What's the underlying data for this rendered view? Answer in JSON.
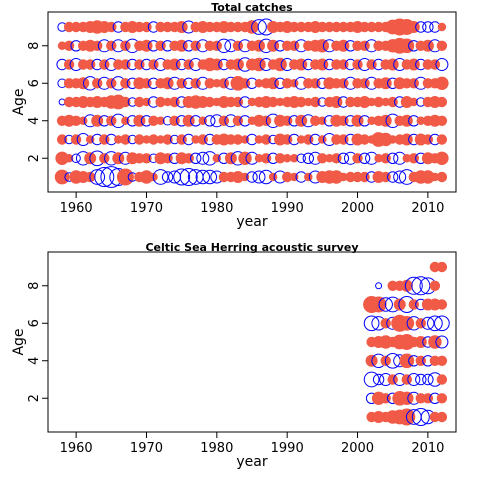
{
  "colors": {
    "positive": "#f05a46",
    "negative": "#0000ff"
  },
  "chart_data": [
    {
      "type": "scatter",
      "subtype": "bubble",
      "title": "Total catches",
      "xlabel": "year",
      "ylabel": "Age",
      "xlim": [
        1956,
        2014
      ],
      "ylim": [
        0.2,
        9.8
      ],
      "xticks": [
        1960,
        1970,
        1980,
        1990,
        2000,
        2010
      ],
      "yticks": [
        2,
        4,
        6,
        8
      ],
      "grid": false,
      "legend": "none",
      "x_years": [
        1958,
        2012
      ],
      "ages": [
        1,
        2,
        3,
        4,
        5,
        6,
        7,
        8,
        9
      ],
      "residuals_by_age": {
        "1": [
          0.6,
          -0.2,
          0.5,
          0.4,
          0.3,
          -0.6,
          -1.0,
          -1.2,
          -0.8,
          0.8,
          -0.2,
          0.3,
          0.5,
          0.2,
          -0.6,
          -0.3,
          -0.4,
          -0.7,
          -0.8,
          -0.6,
          -0.5,
          -0.5,
          -0.4,
          0.3,
          0.3,
          0.4,
          0.2,
          -0.3,
          -0.4,
          -0.5,
          0.2,
          -0.4,
          0.3,
          0.2,
          -0.3,
          0.2,
          -0.4,
          0.4,
          0.5,
          0.5,
          0.2,
          0.3,
          0.3,
          0.3,
          -0.3,
          0.4,
          0.3,
          -0.3,
          -0.4,
          -0.6,
          0.3,
          0.5,
          0.5,
          0.2,
          0.3
        ],
        "2": [
          0.5,
          0.2,
          -0.2,
          -0.5,
          0.4,
          -0.6,
          0.3,
          -0.5,
          0.4,
          -0.4,
          0.4,
          0.3,
          0.3,
          -0.2,
          0.4,
          0.3,
          -0.3,
          0.4,
          0.3,
          -0.3,
          -0.4,
          -0.5,
          0.2,
          -0.3,
          0.4,
          -0.5,
          0.5,
          -0.4,
          0.2,
          0.3,
          -0.3,
          0.3,
          0.2,
          0.2,
          -0.2,
          -0.3,
          -0.4,
          0.3,
          0.2,
          0.3,
          -0.3,
          -0.4,
          0.3,
          -0.3,
          -0.4,
          0.2,
          0.3,
          -0.3,
          -0.4,
          0.2,
          0.3,
          -0.3,
          0.4,
          0.3,
          0.5
        ],
        "3": [
          0.3,
          -0.2,
          0.3,
          -0.4,
          0.2,
          -0.3,
          0.3,
          -0.3,
          0.2,
          0.3,
          -0.2,
          0.3,
          0.2,
          0.3,
          0.2,
          0.3,
          -0.2,
          0.3,
          -0.3,
          0.2,
          0.3,
          -0.3,
          0.3,
          0.4,
          0.3,
          0.3,
          0.2,
          -0.3,
          0.2,
          0.3,
          -0.2,
          0.4,
          0.3,
          -0.3,
          0.2,
          0.3,
          -0.3,
          0.2,
          -0.4,
          0.3,
          0.3,
          -0.3,
          0.4,
          0.3,
          0.2,
          0.6,
          0.5,
          0.2,
          0.3,
          0.4,
          -0.3,
          0.4,
          0.3,
          -0.3,
          0.3
        ],
        "4": [
          0.3,
          0.4,
          0.3,
          0.2,
          -0.4,
          0.4,
          -0.3,
          0.3,
          -0.5,
          0.2,
          -0.3,
          0.4,
          -0.3,
          0.3,
          0.2,
          -0.2,
          0.3,
          -0.3,
          0.4,
          -0.3,
          0.2,
          -0.3,
          -0.4,
          0.3,
          -0.4,
          0.3,
          -0.3,
          0.2,
          0.4,
          0.3,
          -0.5,
          0.4,
          0.3,
          -0.3,
          0.4,
          -0.4,
          0.3,
          0.2,
          -0.3,
          0.4,
          0.3,
          -0.3,
          0.4,
          -0.3,
          0.2,
          0.3,
          0.4,
          -0.5,
          0.3,
          0.4,
          -0.3,
          0.2,
          0.3,
          0.4,
          0.3
        ],
        "5": [
          -0.1,
          0.3,
          0.3,
          0.4,
          0.3,
          0.4,
          0.3,
          0.5,
          0.6,
          0.3,
          -0.2,
          0.3,
          0.2,
          -0.3,
          0.3,
          0.2,
          0.3,
          -0.3,
          0.4,
          0.5,
          0.4,
          0.3,
          0.2,
          0.4,
          0.3,
          0.3,
          -0.3,
          0.2,
          0.3,
          0.4,
          0.3,
          0.2,
          0.3,
          0.4,
          0.3,
          0.2,
          0.3,
          -0.2,
          0.3,
          0.4,
          -0.3,
          0.3,
          0.3,
          0.4,
          0.2,
          0.3,
          0.2,
          0.3,
          -0.3,
          0.4,
          0.2,
          -0.2,
          0.3,
          0.4,
          0.3
        ],
        "6": [
          -0.2,
          0.3,
          0.3,
          0.4,
          -0.5,
          0.3,
          -0.4,
          0.3,
          -0.5,
          0.3,
          -0.3,
          0.4,
          0.3,
          -0.3,
          0.3,
          0.4,
          -0.4,
          0.3,
          -0.3,
          0.3,
          -0.4,
          0.3,
          0.2,
          0.3,
          -0.4,
          0.6,
          0.3,
          -0.3,
          0.2,
          0.3,
          0.4,
          -0.3,
          0.3,
          0.2,
          -0.4,
          0.3,
          0.3,
          -0.3,
          0.4,
          0.3,
          0.3,
          -0.4,
          0.3,
          0.3,
          -0.4,
          0.3,
          0.4,
          -0.3,
          0.4,
          0.3,
          0.3,
          -0.4,
          0.3,
          0.3,
          0.5
        ],
        "7": [
          -0.3,
          0.3,
          -0.4,
          0.3,
          0.3,
          -0.3,
          0.3,
          -0.4,
          0.3,
          0.3,
          -0.3,
          0.3,
          -0.3,
          0.3,
          -0.4,
          0.3,
          0.4,
          -0.3,
          0.3,
          -0.4,
          0.3,
          0.5,
          0.4,
          -0.3,
          0.3,
          0.4,
          -0.5,
          0.4,
          0.5,
          -0.4,
          0.3,
          0.5,
          -0.4,
          0.3,
          0.4,
          -0.3,
          0.3,
          0.4,
          -0.3,
          0.3,
          0.3,
          -0.3,
          0.3,
          -0.4,
          0.3,
          -0.3,
          0.3,
          0.4,
          -0.4,
          0.3,
          0.4,
          -0.3,
          0.3,
          0.3,
          -0.4
        ],
        "8": [
          0.2,
          0.3,
          -0.3,
          0.3,
          0.4,
          0.3,
          -0.4,
          0.3,
          -0.4,
          0.3,
          -0.5,
          0.3,
          0.4,
          -0.3,
          0.3,
          -0.3,
          0.3,
          0.4,
          -0.3,
          0.3,
          -0.4,
          0.3,
          0.3,
          -0.5,
          -0.4,
          0.3,
          -0.4,
          0.3,
          0.4,
          -0.5,
          0.4,
          -0.3,
          0.3,
          0.3,
          -0.4,
          0.3,
          0.4,
          0.5,
          -0.4,
          0.3,
          0.4,
          -0.3,
          0.3,
          0.3,
          -0.4,
          0.3,
          0.3,
          0.5,
          0.7,
          0.6,
          -0.3,
          0.3,
          0.4,
          -0.4,
          0.3
        ],
        "9": [
          -0.2,
          0.3,
          0.3,
          0.3,
          0.4,
          0.5,
          0.4,
          0.3,
          -0.3,
          0.3,
          0.4,
          0.3,
          0.3,
          -0.3,
          0.3,
          0.3,
          0.3,
          0.4,
          -0.4,
          0.3,
          0.4,
          0.3,
          0.3,
          0.4,
          0.3,
          0.3,
          0.3,
          0.5,
          -0.6,
          -0.7,
          0.4,
          0.3,
          0.4,
          0.3,
          0.3,
          0.3,
          0.4,
          0.3,
          0.3,
          0.3,
          0.3,
          0.3,
          0.4,
          0.3,
          0.3,
          0.3,
          0.3,
          0.6,
          0.8,
          0.7,
          0.4,
          -0.3,
          -0.3,
          -0.3,
          0.2
        ]
      }
    },
    {
      "type": "scatter",
      "subtype": "bubble",
      "title": "Celtic Sea Herring acoustic survey",
      "xlabel": "year",
      "ylabel": "Age",
      "xlim": [
        1956,
        2014
      ],
      "ylim": [
        0.2,
        9.8
      ],
      "xticks": [
        1960,
        1970,
        1980,
        1990,
        2000,
        2010
      ],
      "yticks": [
        2,
        4,
        6,
        8
      ],
      "grid": false,
      "legend": "none",
      "x_years": [
        2002,
        2012
      ],
      "ages": [
        1,
        2,
        3,
        4,
        5,
        6,
        7,
        8,
        9
      ],
      "residuals_by_age": {
        "1": [
          0.3,
          0.4,
          0.3,
          0.5,
          0.6,
          0.8,
          -0.6,
          -0.8,
          -0.5,
          0.3,
          0.3
        ],
        "2": [
          -0.3,
          0.5,
          0.3,
          -0.3,
          0.6,
          0.5,
          -0.4,
          0.3,
          0.3,
          -0.3,
          0.3
        ],
        "3": [
          -0.6,
          -0.3,
          -0.4,
          0.3,
          -0.4,
          0.3,
          -0.4,
          -0.3,
          -0.3,
          -0.5,
          0.3
        ],
        "4": [
          0.4,
          -0.5,
          0.3,
          -0.6,
          -0.4,
          0.6,
          -0.3,
          0.3,
          -0.3,
          0.3,
          0.3
        ],
        "5": [
          0.3,
          0.4,
          0.5,
          0.3,
          0.6,
          0.7,
          0.3,
          0.4,
          -0.3,
          0.5,
          -0.4
        ],
        "6": [
          -0.6,
          -0.5,
          0.3,
          -0.4,
          0.8,
          0.6,
          -0.5,
          0.3,
          -0.4,
          -0.6,
          -0.6
        ],
        "7": [
          0.8,
          0.7,
          -0.5,
          -0.6,
          0.4,
          -0.7,
          0.3,
          -0.3,
          0.4,
          0.4,
          0.3
        ],
        "8": [
          0,
          -0.1,
          0,
          0.3,
          0.3,
          0.4,
          -0.8,
          -0.9,
          -0.7,
          0.3,
          0
        ],
        "9": [
          0,
          0,
          0,
          0,
          0,
          0,
          0,
          0,
          0,
          0.3,
          0.3
        ]
      }
    }
  ]
}
